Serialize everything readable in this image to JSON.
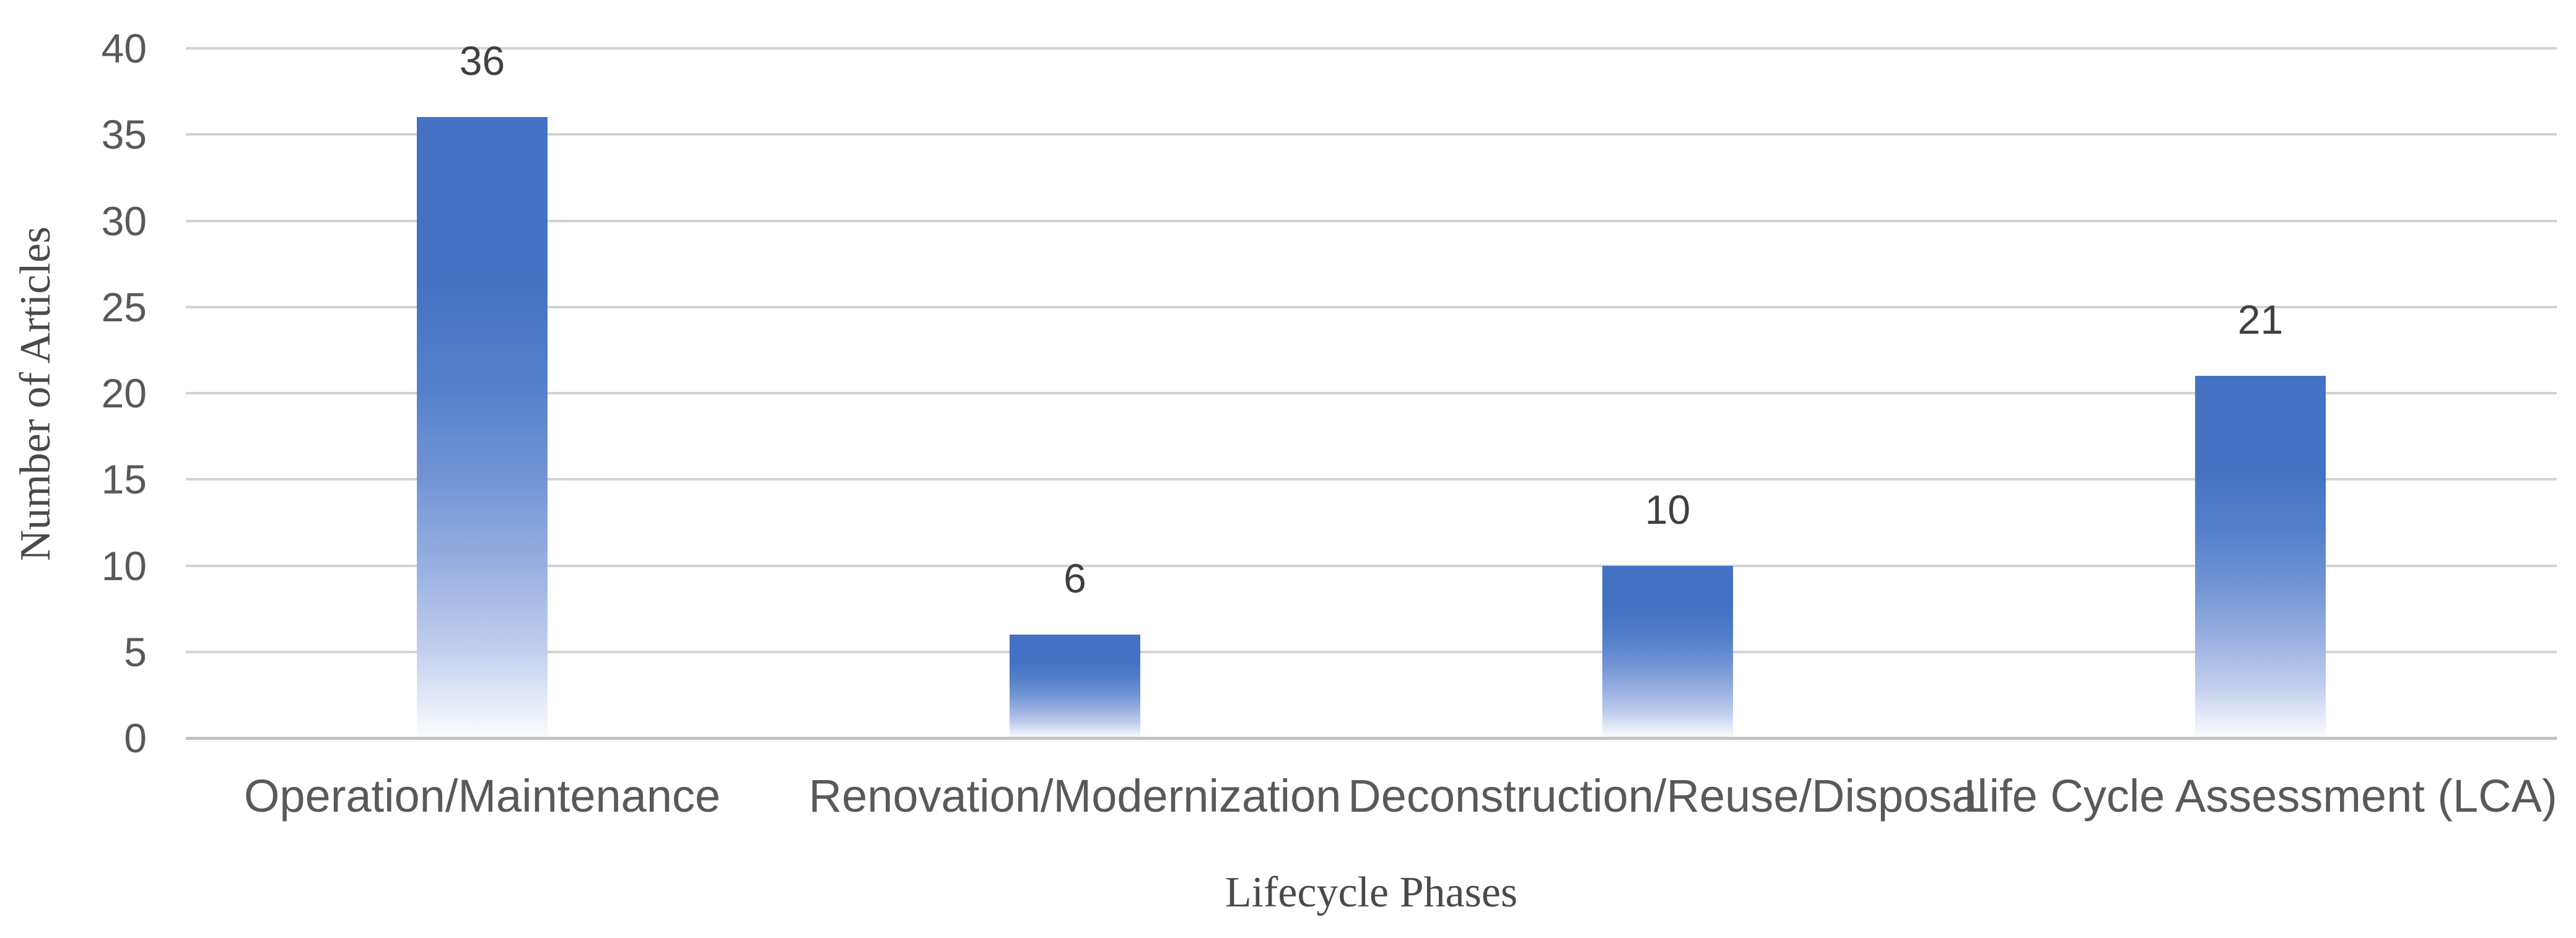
{
  "chart_data": {
    "type": "bar",
    "title": "",
    "categories": [
      "Operation/Maintenance",
      "Renovation/Modernization",
      "Deconstruction/Reuse/Disposal",
      "Life Cycle Assessment (LCA)"
    ],
    "values": [
      36,
      6,
      10,
      21
    ],
    "data_labels": [
      "36",
      "6",
      "10",
      "21"
    ],
    "xlabel": "Lifecycle Phases",
    "ylabel": "Number of Articles",
    "ylim": [
      0,
      40
    ],
    "y_ticks": [
      0,
      5,
      10,
      15,
      20,
      25,
      30,
      35,
      40
    ],
    "grid": "horizontal",
    "legend_position": "none",
    "colors": {
      "bar_top": "#4472C4",
      "bar_bottom": "#FBFCFE",
      "gridline": "#D2D2D2",
      "axis_line": "#C2C2C2",
      "tick_label": "#595959",
      "category_label": "#595959",
      "data_label": "#404040",
      "axis_title": "#4A4A4A",
      "background": "#FFFFFF"
    }
  }
}
